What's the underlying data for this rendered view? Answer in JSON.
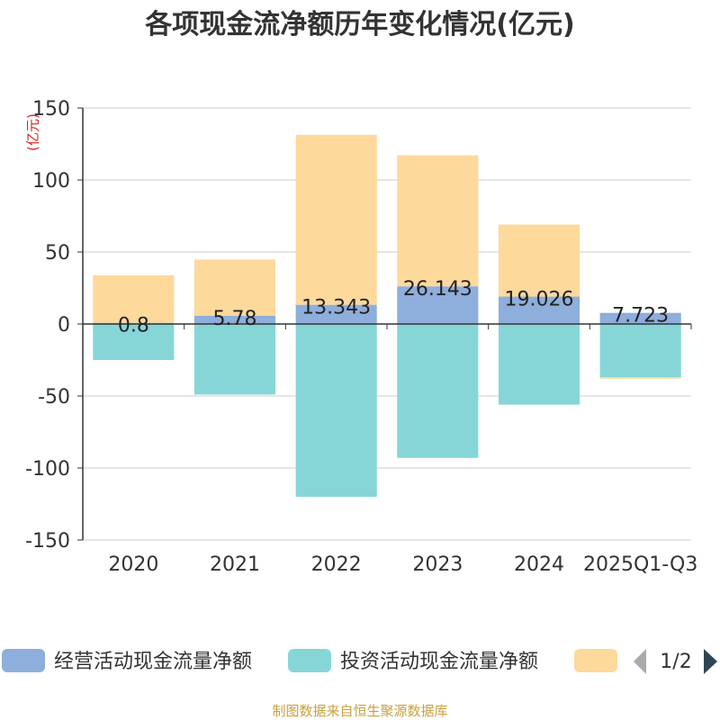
{
  "chart_data": {
    "type": "bar",
    "stacked": true,
    "title": "各项现金流净额历年变化情况(亿元)",
    "unit_label": "(亿元)",
    "categories": [
      "2020",
      "2021",
      "2022",
      "2023",
      "2024",
      "2025Q1-Q3"
    ],
    "ylim": [
      -150,
      150
    ],
    "yticks": [
      150,
      100,
      50,
      0,
      -50,
      -100,
      -150
    ],
    "grid": true,
    "series": [
      {
        "name": "经营活动现金流量净额",
        "color": "#8eaedb",
        "values": [
          0.8,
          5.78,
          13.343,
          26.143,
          19.026,
          7.723
        ],
        "labels": [
          "0.8",
          "5.78",
          "13.343",
          "26.143",
          "19.026",
          "7.723"
        ]
      },
      {
        "name": "投资活动现金流量净额",
        "color": "#86d6d8",
        "values": [
          -25,
          -49,
          -120,
          -93,
          -56,
          -37
        ]
      },
      {
        "name": "",
        "color": "#fdd99b",
        "values": [
          33,
          39,
          118,
          91,
          50,
          -1
        ]
      }
    ],
    "legend": {
      "position": "bottom",
      "page": "1/2"
    }
  },
  "source": "制图数据来自恒生聚源数据库"
}
